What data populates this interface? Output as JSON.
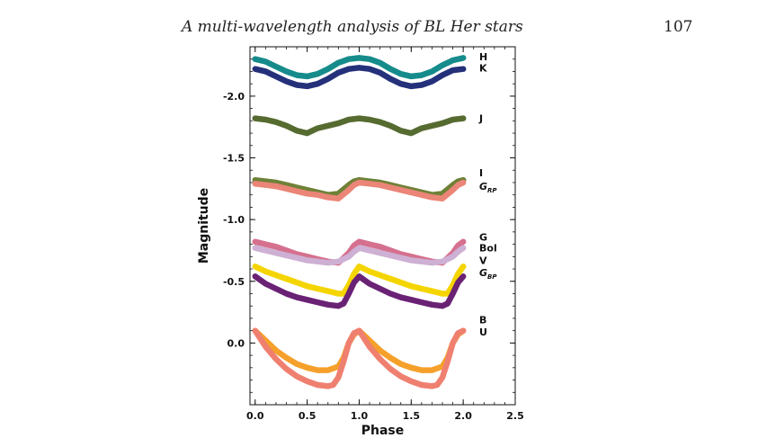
{
  "page": {
    "running_title": "A multi-wavelength analysis of BL Her stars",
    "page_number": "107"
  },
  "chart_data": {
    "type": "line",
    "title": "",
    "xlabel": "Phase",
    "ylabel": "Magnitude",
    "xlim": [
      -0.05,
      2.5
    ],
    "ylim": [
      0.5,
      -2.4
    ],
    "y_inverted": true,
    "grid": false,
    "x_ticks": [
      "0.0",
      "0.5",
      "1.0",
      "1.5",
      "2.0",
      "2.5"
    ],
    "y_ticks": [
      "-2.0",
      "-1.5",
      "-1.0",
      "-0.5",
      "0.0"
    ],
    "series": [
      {
        "name": "H",
        "color": "#168b8b",
        "label_y": -2.32,
        "x": [
          0,
          0.1,
          0.2,
          0.3,
          0.4,
          0.5,
          0.6,
          0.7,
          0.8,
          0.9,
          1.0,
          1.1,
          1.2,
          1.3,
          1.4,
          1.5,
          1.6,
          1.7,
          1.8,
          1.9,
          2.0
        ],
        "y": [
          -2.3,
          -2.28,
          -2.24,
          -2.2,
          -2.17,
          -2.16,
          -2.18,
          -2.22,
          -2.27,
          -2.3,
          -2.31,
          -2.3,
          -2.27,
          -2.22,
          -2.18,
          -2.16,
          -2.17,
          -2.2,
          -2.25,
          -2.29,
          -2.31
        ]
      },
      {
        "name": "K",
        "color": "#24307a",
        "label_y": -2.23,
        "x": [
          0,
          0.1,
          0.2,
          0.3,
          0.4,
          0.5,
          0.6,
          0.7,
          0.8,
          0.9,
          1.0,
          1.1,
          1.2,
          1.3,
          1.4,
          1.5,
          1.6,
          1.7,
          1.8,
          1.9,
          2.0
        ],
        "y": [
          -2.22,
          -2.2,
          -2.16,
          -2.12,
          -2.09,
          -2.08,
          -2.1,
          -2.14,
          -2.19,
          -2.22,
          -2.23,
          -2.22,
          -2.19,
          -2.14,
          -2.1,
          -2.08,
          -2.09,
          -2.12,
          -2.17,
          -2.21,
          -2.22
        ]
      },
      {
        "name": "J",
        "color": "#566b30",
        "label_y": -1.82,
        "x": [
          0,
          0.1,
          0.2,
          0.3,
          0.4,
          0.5,
          0.6,
          0.7,
          0.8,
          0.9,
          1.0,
          1.1,
          1.2,
          1.3,
          1.4,
          1.5,
          1.6,
          1.7,
          1.8,
          1.9,
          2.0
        ],
        "y": [
          -1.82,
          -1.81,
          -1.79,
          -1.76,
          -1.72,
          -1.7,
          -1.74,
          -1.76,
          -1.78,
          -1.81,
          -1.82,
          -1.81,
          -1.79,
          -1.76,
          -1.72,
          -1.7,
          -1.74,
          -1.76,
          -1.78,
          -1.81,
          -1.82
        ]
      },
      {
        "name": "I",
        "color": "#6e8137",
        "label_y": -1.38,
        "x": [
          0,
          0.1,
          0.2,
          0.3,
          0.4,
          0.5,
          0.6,
          0.7,
          0.8,
          0.9,
          0.95,
          1.0,
          1.1,
          1.2,
          1.3,
          1.4,
          1.5,
          1.6,
          1.7,
          1.8,
          1.9,
          1.95,
          2.0
        ],
        "y": [
          -1.32,
          -1.31,
          -1.3,
          -1.28,
          -1.26,
          -1.24,
          -1.22,
          -1.2,
          -1.21,
          -1.28,
          -1.31,
          -1.32,
          -1.31,
          -1.3,
          -1.28,
          -1.26,
          -1.24,
          -1.22,
          -1.2,
          -1.21,
          -1.28,
          -1.31,
          -1.32
        ]
      },
      {
        "name": "G_RP",
        "label_main": "G",
        "label_sub": "RP",
        "color": "#ea8577",
        "label_y": -1.27,
        "x": [
          0,
          0.1,
          0.2,
          0.3,
          0.4,
          0.5,
          0.6,
          0.7,
          0.8,
          0.9,
          0.95,
          1.0,
          1.1,
          1.2,
          1.3,
          1.4,
          1.5,
          1.6,
          1.7,
          1.8,
          1.9,
          1.95,
          2.0
        ],
        "y": [
          -1.29,
          -1.28,
          -1.27,
          -1.25,
          -1.23,
          -1.21,
          -1.2,
          -1.18,
          -1.17,
          -1.24,
          -1.28,
          -1.3,
          -1.29,
          -1.28,
          -1.26,
          -1.24,
          -1.22,
          -1.2,
          -1.18,
          -1.17,
          -1.24,
          -1.28,
          -1.3
        ]
      },
      {
        "name": "G",
        "color": "#d5708e",
        "label_y": -0.86,
        "x": [
          0,
          0.1,
          0.2,
          0.3,
          0.4,
          0.5,
          0.6,
          0.7,
          0.8,
          0.9,
          0.95,
          1.0,
          1.1,
          1.2,
          1.3,
          1.4,
          1.5,
          1.6,
          1.7,
          1.8,
          1.9,
          1.95,
          2.0
        ],
        "y": [
          -0.82,
          -0.8,
          -0.78,
          -0.75,
          -0.72,
          -0.7,
          -0.68,
          -0.66,
          -0.65,
          -0.73,
          -0.79,
          -0.82,
          -0.8,
          -0.78,
          -0.75,
          -0.72,
          -0.7,
          -0.68,
          -0.66,
          -0.65,
          -0.73,
          -0.79,
          -0.82
        ]
      },
      {
        "name": "Bol",
        "color": "#cdb0d3",
        "label_y": -0.77,
        "x": [
          0,
          0.1,
          0.2,
          0.3,
          0.4,
          0.5,
          0.6,
          0.7,
          0.8,
          0.9,
          0.95,
          1.0,
          1.1,
          1.2,
          1.3,
          1.4,
          1.5,
          1.6,
          1.7,
          1.8,
          1.9,
          1.95,
          2.0
        ],
        "y": [
          -0.77,
          -0.75,
          -0.73,
          -0.71,
          -0.69,
          -0.67,
          -0.66,
          -0.65,
          -0.66,
          -0.7,
          -0.74,
          -0.77,
          -0.75,
          -0.73,
          -0.71,
          -0.69,
          -0.67,
          -0.66,
          -0.65,
          -0.66,
          -0.7,
          -0.74,
          -0.77
        ]
      },
      {
        "name": "V",
        "color": "#f4d500",
        "label_y": -0.67,
        "x": [
          0,
          0.1,
          0.2,
          0.3,
          0.4,
          0.5,
          0.6,
          0.7,
          0.8,
          0.85,
          0.9,
          0.95,
          1.0,
          1.1,
          1.2,
          1.3,
          1.4,
          1.5,
          1.6,
          1.7,
          1.8,
          1.85,
          1.9,
          1.95,
          2.0
        ],
        "y": [
          -0.62,
          -0.58,
          -0.55,
          -0.52,
          -0.49,
          -0.46,
          -0.44,
          -0.42,
          -0.4,
          -0.4,
          -0.47,
          -0.56,
          -0.62,
          -0.58,
          -0.55,
          -0.52,
          -0.49,
          -0.46,
          -0.44,
          -0.42,
          -0.4,
          -0.4,
          -0.47,
          -0.56,
          -0.62
        ]
      },
      {
        "name": "G_BP",
        "label_main": "G",
        "label_sub": "BP",
        "color": "#6a2275",
        "label_y": -0.57,
        "x": [
          0,
          0.1,
          0.2,
          0.3,
          0.4,
          0.5,
          0.6,
          0.7,
          0.8,
          0.85,
          0.9,
          0.95,
          1.0,
          1.1,
          1.2,
          1.3,
          1.4,
          1.5,
          1.6,
          1.7,
          1.8,
          1.85,
          1.9,
          1.95,
          2.0
        ],
        "y": [
          -0.54,
          -0.48,
          -0.44,
          -0.4,
          -0.37,
          -0.35,
          -0.33,
          -0.31,
          -0.3,
          -0.32,
          -0.4,
          -0.49,
          -0.54,
          -0.48,
          -0.44,
          -0.4,
          -0.37,
          -0.35,
          -0.33,
          -0.31,
          -0.3,
          -0.32,
          -0.4,
          -0.49,
          -0.54
        ]
      },
      {
        "name": "B",
        "color": "#f5a02a",
        "label_y": -0.19,
        "x": [
          0,
          0.1,
          0.2,
          0.3,
          0.4,
          0.5,
          0.6,
          0.7,
          0.8,
          0.85,
          0.9,
          0.95,
          1.0,
          1.1,
          1.2,
          1.3,
          1.4,
          1.5,
          1.6,
          1.7,
          1.8,
          1.85,
          1.9,
          1.95,
          2.0
        ],
        "y": [
          -0.1,
          -0.02,
          0.06,
          0.12,
          0.17,
          0.2,
          0.22,
          0.22,
          0.19,
          0.12,
          0.0,
          -0.07,
          -0.1,
          -0.02,
          0.06,
          0.12,
          0.17,
          0.2,
          0.22,
          0.22,
          0.19,
          0.12,
          0.0,
          -0.07,
          -0.1
        ]
      },
      {
        "name": "U",
        "color": "#ef8070",
        "label_y": -0.09,
        "x": [
          0,
          0.1,
          0.2,
          0.3,
          0.4,
          0.5,
          0.6,
          0.7,
          0.75,
          0.8,
          0.85,
          0.9,
          0.95,
          1.0,
          1.1,
          1.2,
          1.3,
          1.4,
          1.5,
          1.6,
          1.7,
          1.75,
          1.8,
          1.85,
          1.9,
          1.95,
          2.0
        ],
        "y": [
          -0.1,
          0.03,
          0.13,
          0.21,
          0.27,
          0.31,
          0.34,
          0.35,
          0.34,
          0.28,
          0.15,
          0.0,
          -0.08,
          -0.1,
          0.03,
          0.13,
          0.21,
          0.27,
          0.31,
          0.34,
          0.35,
          0.34,
          0.28,
          0.15,
          0.0,
          -0.08,
          -0.1
        ]
      }
    ]
  }
}
